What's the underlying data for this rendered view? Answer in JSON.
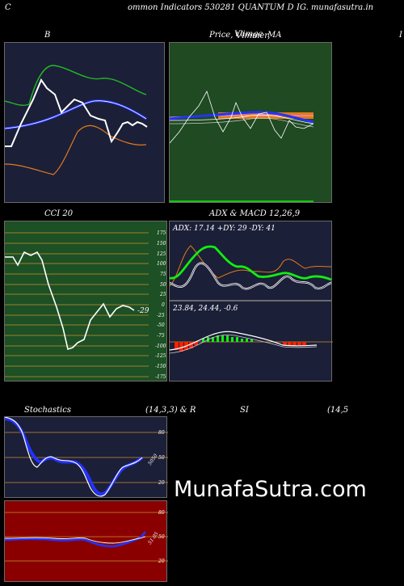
{
  "header": {
    "left": "C",
    "mid": "ommon  Indicators 530281 QUANTUM D",
    "right": "IG. munafasutra.in"
  },
  "panels": {
    "bollinger": {
      "label": "B",
      "bg": "#1c1f38"
    },
    "price_ma": {
      "label_price": "Price,",
      "label_overlap1": "Vlimge",
      "label_overlap2": "Vlmmer,",
      "label_ma": "MA",
      "edge": "I",
      "bg": "#1f4a22"
    },
    "cci": {
      "label": "CCI 20",
      "value": "-29",
      "bg": "#1d5024",
      "ticks": [
        "175",
        "150",
        "125",
        "100",
        "75",
        "50",
        "25",
        "0",
        "-25",
        "-50",
        "-75",
        "-100",
        "-125",
        "-150",
        "-175"
      ]
    },
    "adx": {
      "label": "ADX  & MACD 12,26,9",
      "readout": "ADX: 17.14   +DY: 29 -DY: 41",
      "bg": "#1c1f38"
    },
    "macd": {
      "readout": "23.84,  24.44,  -0.6",
      "bg": "#1c1f38"
    },
    "stoch": {
      "label_left": "Stochastics",
      "label_params": "(14,3,3) & R",
      "label_si": "SI",
      "label_right": "(14,5",
      "ticks": [
        "80",
        "50",
        "20"
      ],
      "value": "5050",
      "bg": "#1c1f38"
    },
    "rsi": {
      "ticks": [
        "80",
        "50",
        "20"
      ],
      "value": "51.05",
      "bg": "#8a0000"
    }
  },
  "watermark": "MunafaSutra.com",
  "colors": {
    "white": "#ffffff",
    "green": "#22bb22",
    "blue": "#2233ff",
    "orange": "#e07b1a",
    "bright_green": "#11ee11",
    "red": "#ff2200"
  }
}
